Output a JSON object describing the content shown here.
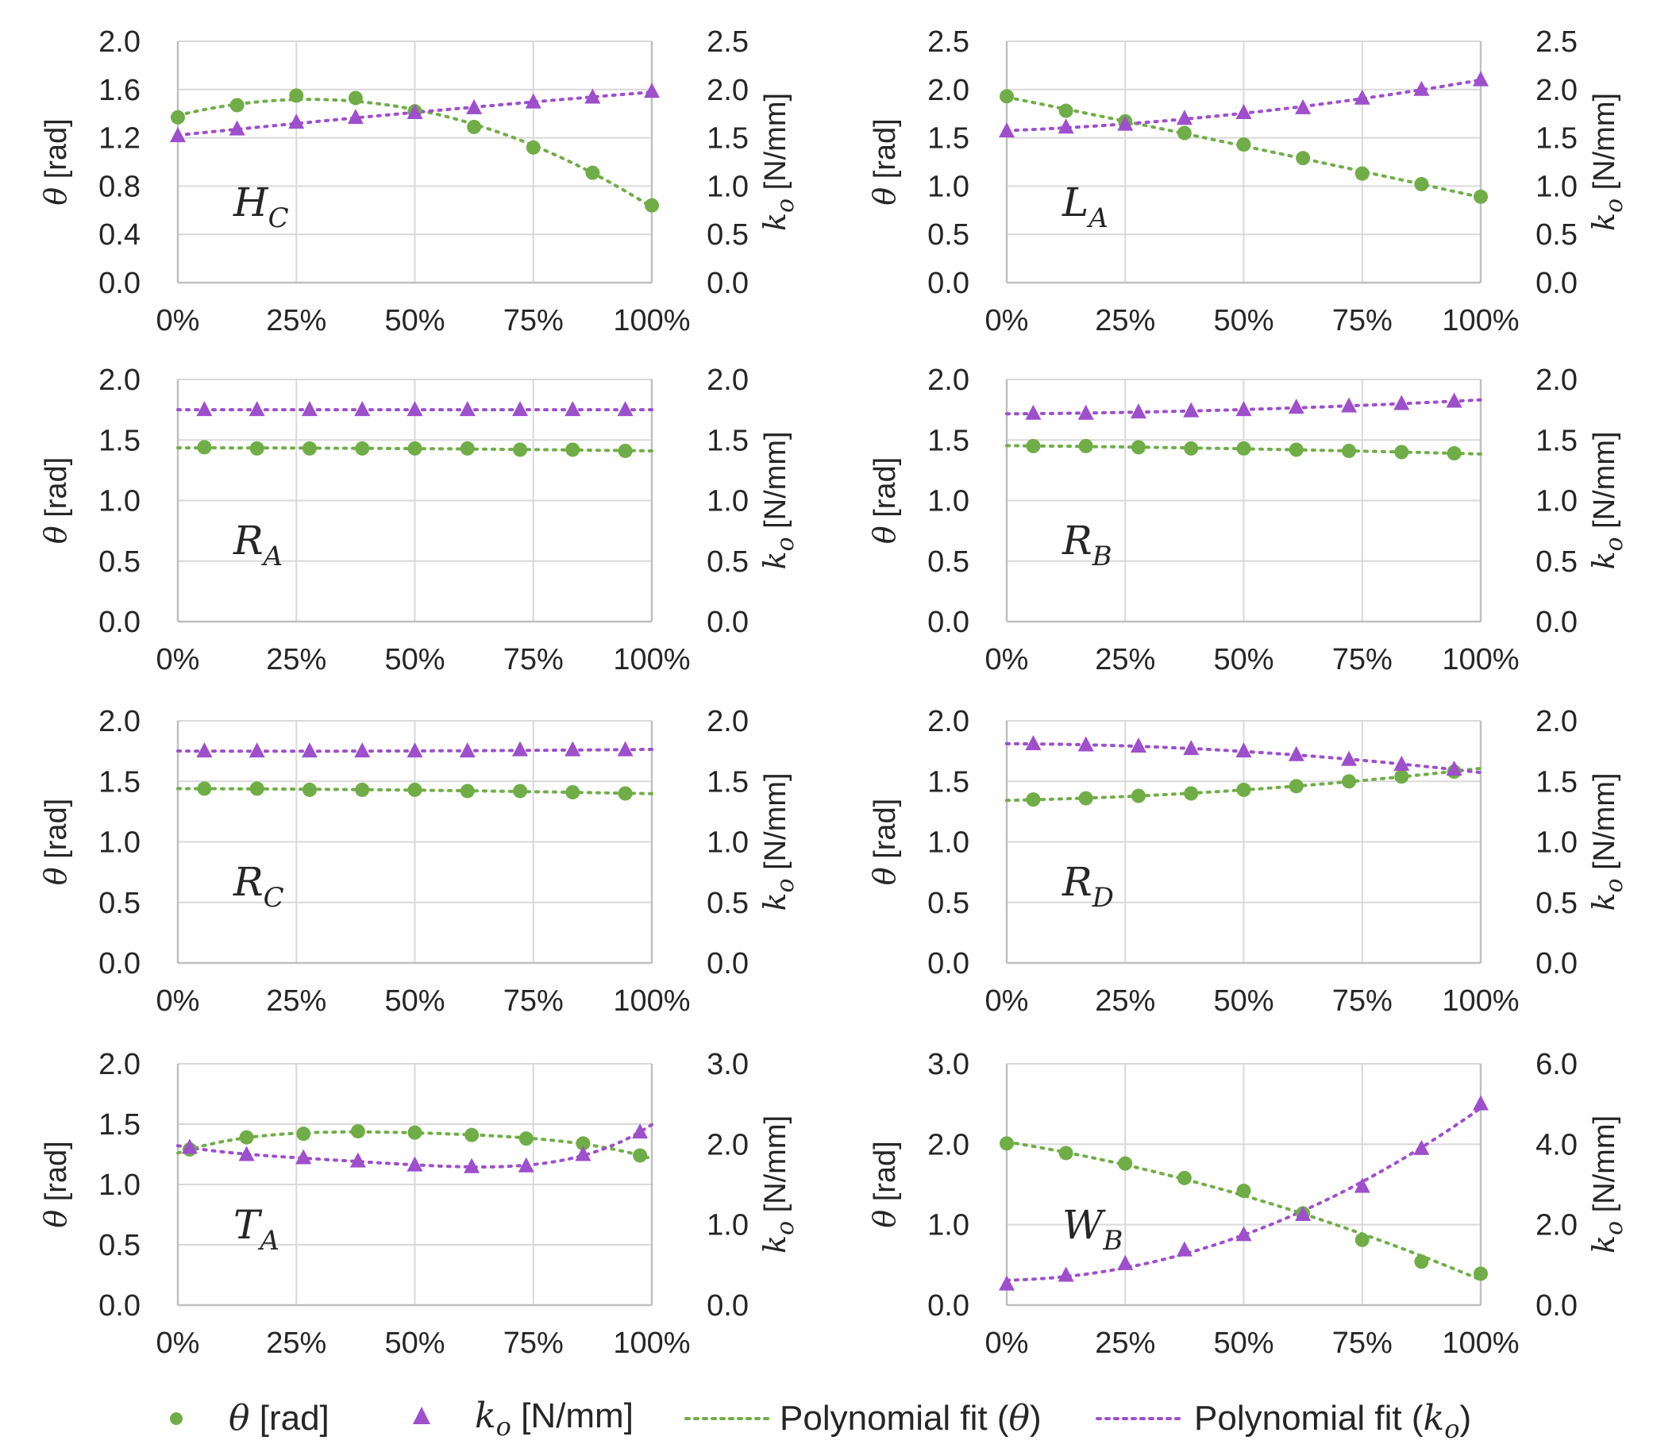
{
  "colors": {
    "theta": "#70AD47",
    "ko": "#9E4FCC",
    "grid": "#D9D9D9",
    "axis": "#BFBFBF",
    "text": "#262626"
  },
  "legend": {
    "theta_symbol": "θ",
    "theta_unit": " [rad]",
    "ko_symbol": "k",
    "ko_sub": "o",
    "ko_unit": " [N/mm]",
    "fit_theta_prefix": "Polynomial fit (",
    "fit_theta_symbol": "θ",
    "fit_theta_suffix": ")",
    "fit_ko_prefix": "Polynomial fit (",
    "fit_ko_symbol": "k",
    "fit_ko_sub": "o",
    "fit_ko_suffix": ")"
  },
  "axis_labels": {
    "left_symbol": "θ",
    "left_unit": " [rad]",
    "right_symbol": "k",
    "right_sub": "o",
    "right_unit": " [N/mm]"
  },
  "chart_data": [
    {
      "type": "scatter",
      "label_main": "H",
      "label_sub": "C",
      "x_ticks": [
        "0%",
        "25%",
        "50%",
        "75%",
        "100%"
      ],
      "left_ticks": [
        "0.0",
        "0.4",
        "0.8",
        "1.2",
        "1.6",
        "2.0"
      ],
      "left_range": [
        0,
        2.0
      ],
      "right_ticks": [
        "0.0",
        "0.5",
        "1.0",
        "1.5",
        "2.0",
        "2.5"
      ],
      "right_range": [
        0,
        2.5
      ],
      "theta": {
        "x": [
          0,
          12.5,
          25,
          37.5,
          50,
          62.5,
          75,
          87.5,
          100
        ],
        "y": [
          1.37,
          1.47,
          1.55,
          1.53,
          1.42,
          1.29,
          1.12,
          0.91,
          0.64
        ]
      },
      "ko": {
        "x": [
          0,
          12.5,
          25,
          37.5,
          50,
          62.5,
          75,
          87.5,
          100
        ],
        "y": [
          1.52,
          1.59,
          1.66,
          1.71,
          1.76,
          1.81,
          1.87,
          1.92,
          1.98
        ]
      },
      "fit_degree": 2
    },
    {
      "type": "scatter",
      "label_main": "L",
      "label_sub": "A",
      "x_ticks": [
        "0%",
        "25%",
        "50%",
        "75%",
        "100%"
      ],
      "left_ticks": [
        "0.0",
        "0.5",
        "1.0",
        "1.5",
        "2.0",
        "2.5"
      ],
      "left_range": [
        0,
        2.5
      ],
      "right_ticks": [
        "0.0",
        "0.5",
        "1.0",
        "1.5",
        "2.0",
        "2.5"
      ],
      "right_range": [
        0,
        2.5
      ],
      "theta": {
        "x": [
          0,
          12.5,
          25,
          37.5,
          50,
          62.5,
          75,
          87.5,
          100
        ],
        "y": [
          1.93,
          1.78,
          1.67,
          1.55,
          1.43,
          1.29,
          1.13,
          1.02,
          0.89
        ]
      },
      "ko": {
        "x": [
          0,
          12.5,
          25,
          37.5,
          50,
          62.5,
          75,
          87.5,
          100
        ],
        "y": [
          1.57,
          1.61,
          1.64,
          1.7,
          1.76,
          1.81,
          1.91,
          2.0,
          2.1
        ]
      },
      "fit_degree": 2
    },
    {
      "type": "scatter",
      "label_main": "R",
      "label_sub": "A",
      "x_ticks": [
        "0%",
        "25%",
        "50%",
        "75%",
        "100%"
      ],
      "left_ticks": [
        "0.0",
        "0.5",
        "1.0",
        "1.5",
        "2.0"
      ],
      "left_range": [
        0,
        2.0
      ],
      "right_ticks": [
        "0.0",
        "0.5",
        "1.0",
        "1.5",
        "2.0"
      ],
      "right_range": [
        0,
        2.0
      ],
      "theta": {
        "x": [
          5.6,
          16.7,
          27.8,
          38.9,
          50,
          61.1,
          72.2,
          83.3,
          94.4
        ],
        "y": [
          1.44,
          1.43,
          1.43,
          1.43,
          1.43,
          1.43,
          1.42,
          1.42,
          1.41
        ]
      },
      "ko": {
        "x": [
          5.6,
          16.7,
          27.8,
          38.9,
          50,
          61.1,
          72.2,
          83.3,
          94.4
        ],
        "y": [
          1.75,
          1.75,
          1.75,
          1.75,
          1.75,
          1.75,
          1.75,
          1.75,
          1.75
        ]
      },
      "fit_degree": 2
    },
    {
      "type": "scatter",
      "label_main": "R",
      "label_sub": "B",
      "x_ticks": [
        "0%",
        "25%",
        "50%",
        "75%",
        "100%"
      ],
      "left_ticks": [
        "0.0",
        "0.5",
        "1.0",
        "1.5",
        "2.0"
      ],
      "left_range": [
        0,
        2.0
      ],
      "right_ticks": [
        "0.0",
        "0.5",
        "1.0",
        "1.5",
        "2.0"
      ],
      "right_range": [
        0,
        2.0
      ],
      "theta": {
        "x": [
          5.6,
          16.7,
          27.8,
          38.9,
          50,
          61.1,
          72.2,
          83.3,
          94.4
        ],
        "y": [
          1.45,
          1.45,
          1.44,
          1.43,
          1.43,
          1.42,
          1.41,
          1.4,
          1.39
        ]
      },
      "ko": {
        "x": [
          5.6,
          16.7,
          27.8,
          38.9,
          50,
          61.1,
          72.2,
          83.3,
          94.4
        ],
        "y": [
          1.72,
          1.72,
          1.73,
          1.74,
          1.75,
          1.77,
          1.78,
          1.8,
          1.82
        ]
      },
      "fit_degree": 2
    },
    {
      "type": "scatter",
      "label_main": "R",
      "label_sub": "C",
      "x_ticks": [
        "0%",
        "25%",
        "50%",
        "75%",
        "100%"
      ],
      "left_ticks": [
        "0.0",
        "0.5",
        "1.0",
        "1.5",
        "2.0"
      ],
      "left_range": [
        0,
        2.0
      ],
      "right_ticks": [
        "0.0",
        "0.5",
        "1.0",
        "1.5",
        "2.0"
      ],
      "right_range": [
        0,
        2.0
      ],
      "theta": {
        "x": [
          5.6,
          16.7,
          27.8,
          38.9,
          50,
          61.1,
          72.2,
          83.3,
          94.4
        ],
        "y": [
          1.44,
          1.44,
          1.43,
          1.43,
          1.43,
          1.42,
          1.42,
          1.41,
          1.4
        ]
      },
      "ko": {
        "x": [
          5.6,
          16.7,
          27.8,
          38.9,
          50,
          61.1,
          72.2,
          83.3,
          94.4
        ],
        "y": [
          1.75,
          1.75,
          1.75,
          1.75,
          1.75,
          1.75,
          1.76,
          1.76,
          1.76
        ]
      },
      "fit_degree": 2
    },
    {
      "type": "scatter",
      "label_main": "R",
      "label_sub": "D",
      "x_ticks": [
        "0%",
        "25%",
        "50%",
        "75%",
        "100%"
      ],
      "left_ticks": [
        "0.0",
        "0.5",
        "1.0",
        "1.5",
        "2.0"
      ],
      "left_range": [
        0,
        2.0
      ],
      "right_ticks": [
        "0.0",
        "0.5",
        "1.0",
        "1.5",
        "2.0"
      ],
      "right_range": [
        0,
        2.0
      ],
      "theta": {
        "x": [
          5.6,
          16.7,
          27.8,
          38.9,
          50,
          61.1,
          72.2,
          83.3,
          94.4
        ],
        "y": [
          1.35,
          1.36,
          1.38,
          1.4,
          1.43,
          1.46,
          1.5,
          1.54,
          1.58
        ]
      },
      "ko": {
        "x": [
          5.6,
          16.7,
          27.8,
          38.9,
          50,
          61.1,
          72.2,
          83.3,
          94.4
        ],
        "y": [
          1.81,
          1.8,
          1.79,
          1.77,
          1.75,
          1.72,
          1.68,
          1.64,
          1.6
        ]
      },
      "fit_degree": 2
    },
    {
      "type": "scatter",
      "label_main": "T",
      "label_sub": "A",
      "x_ticks": [
        "0%",
        "25%",
        "50%",
        "75%",
        "100%"
      ],
      "left_ticks": [
        "0.0",
        "0.5",
        "1.0",
        "1.5",
        "2.0"
      ],
      "left_range": [
        0,
        2.0
      ],
      "right_ticks": [
        "0.0",
        "1.0",
        "2.0",
        "3.0"
      ],
      "right_range": [
        0,
        3.0
      ],
      "theta": {
        "x": [
          2.5,
          14.5,
          26.5,
          38,
          50,
          62,
          73.5,
          85.5,
          97.5
        ],
        "y": [
          1.29,
          1.39,
          1.42,
          1.44,
          1.43,
          1.41,
          1.38,
          1.34,
          1.24
        ]
      },
      "ko": {
        "x": [
          2.5,
          14.5,
          26.5,
          38,
          50,
          62,
          73.5,
          85.5,
          97.5
        ],
        "y": [
          1.96,
          1.87,
          1.83,
          1.79,
          1.74,
          1.72,
          1.73,
          1.87,
          2.15
        ]
      },
      "fit_degree": 4
    },
    {
      "type": "scatter",
      "label_main": "W",
      "label_sub": "B",
      "x_ticks": [
        "0%",
        "25%",
        "50%",
        "75%",
        "100%"
      ],
      "left_ticks": [
        "0.0",
        "1.0",
        "2.0",
        "3.0"
      ],
      "left_range": [
        0,
        3.0
      ],
      "right_ticks": [
        "0.0",
        "2.0",
        "4.0",
        "6.0"
      ],
      "right_range": [
        0,
        6.0
      ],
      "theta": {
        "x": [
          0,
          12.5,
          25,
          37.5,
          50,
          62.5,
          75,
          87.5,
          100
        ],
        "y": [
          2.01,
          1.89,
          1.76,
          1.58,
          1.42,
          1.14,
          0.81,
          0.54,
          0.39
        ]
      },
      "ko": {
        "x": [
          0,
          12.5,
          25,
          37.5,
          50,
          62.5,
          75,
          87.5,
          100
        ],
        "y": [
          0.52,
          0.74,
          1.03,
          1.37,
          1.75,
          2.25,
          2.95,
          3.89,
          5.0
        ]
      },
      "fit_degree": 2
    }
  ]
}
